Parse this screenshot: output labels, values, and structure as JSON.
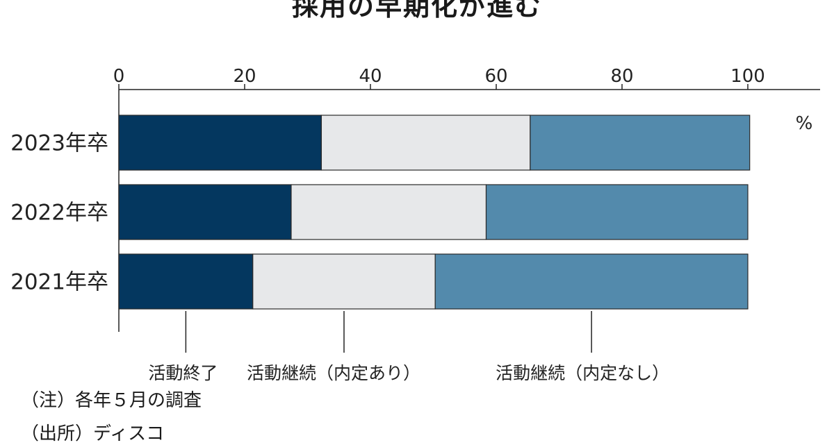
{
  "chart_data": {
    "type": "bar",
    "orientation": "horizontal",
    "stacked": true,
    "title": "採用の早期化が進む",
    "unit_label": "%",
    "xlim": [
      0,
      110
    ],
    "xticks": [
      0,
      20,
      40,
      60,
      80,
      100
    ],
    "categories": [
      "2023年卒",
      "2022年卒",
      "2021年卒"
    ],
    "series": [
      {
        "name": "活動終了",
        "color": "#04375f",
        "values": [
          32.2,
          27.4,
          21.3
        ]
      },
      {
        "name": "活動継続（内定あり）",
        "color": "#e7e8ea",
        "values": [
          33.2,
          31.0,
          29.0
        ]
      },
      {
        "name": "活動継続（内定なし）",
        "color": "#538aac",
        "values": [
          34.9,
          41.6,
          49.7
        ]
      }
    ]
  },
  "notes": {
    "note": "（注）各年５月の調査",
    "source": "（出所）ディスコ"
  }
}
